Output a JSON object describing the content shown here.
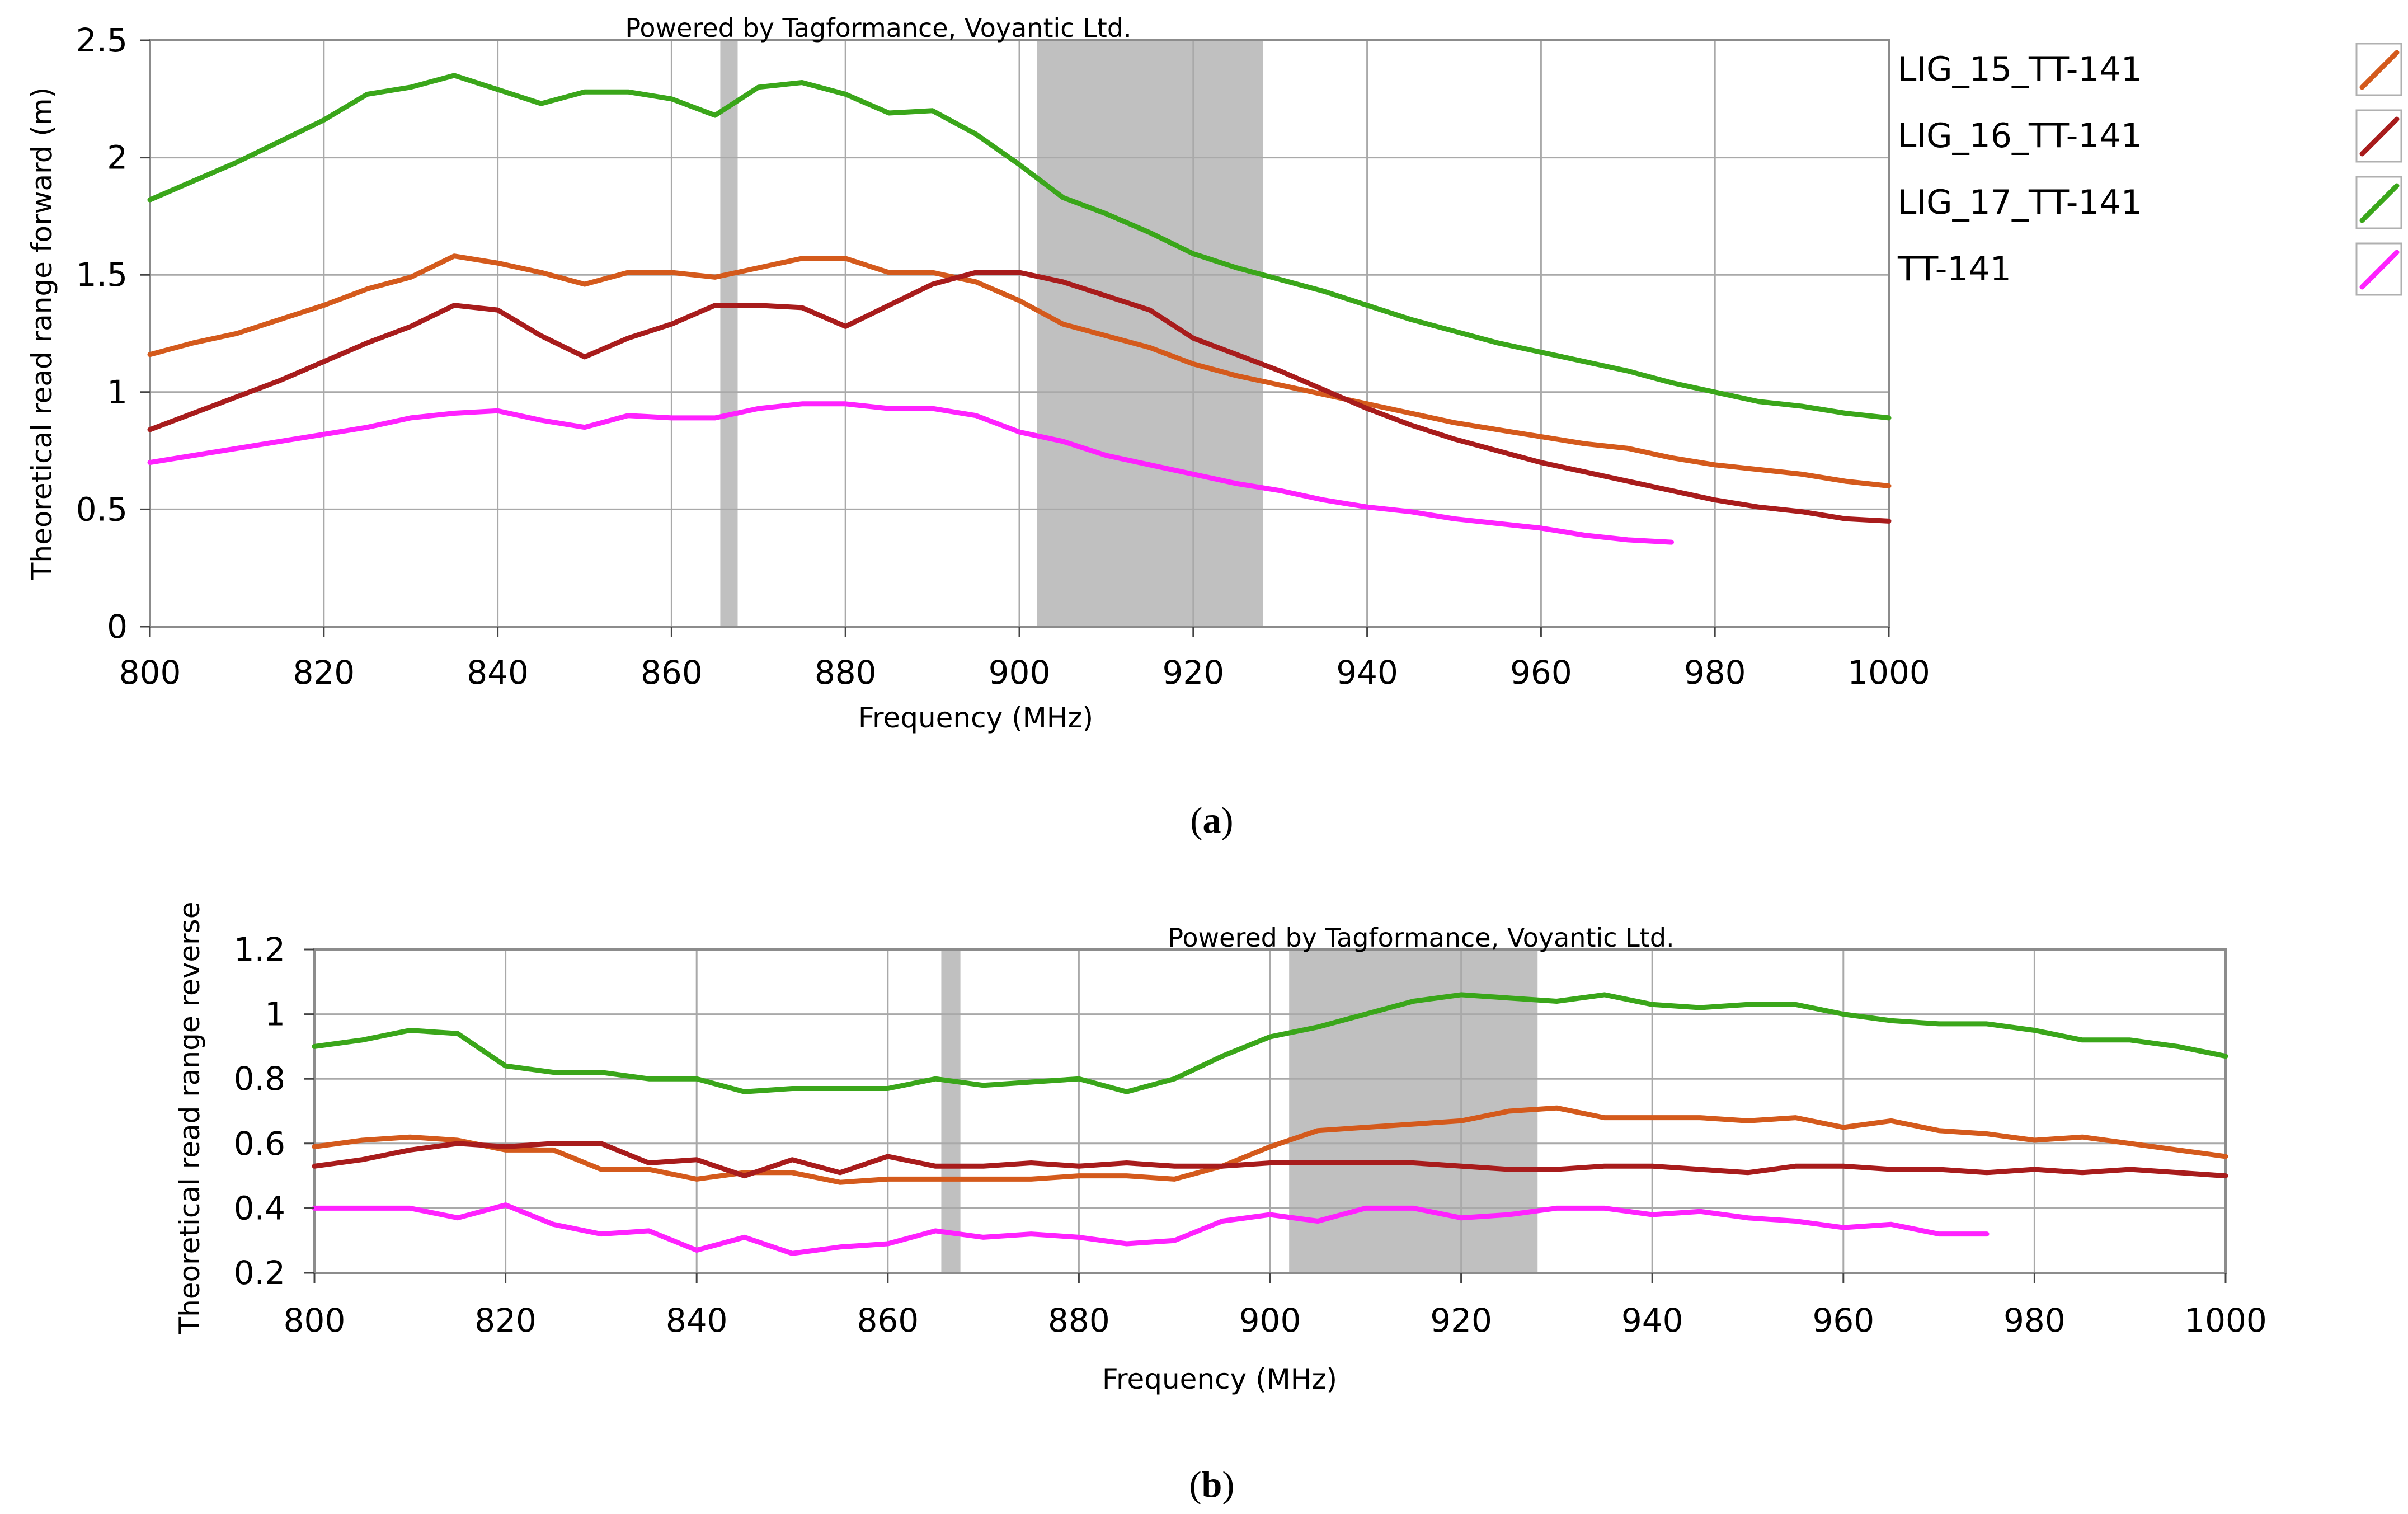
{
  "figure": {
    "caption_a_open": "(",
    "caption_a_letter": "a",
    "caption_a_close": ")",
    "caption_b_open": "(",
    "caption_b_letter": "b",
    "caption_b_close": ")"
  },
  "chart_data": [
    {
      "type": "line",
      "title": "",
      "watermark": "Powered by Tagformance, Voyantic Ltd.",
      "xlabel": "Frequency (MHz)",
      "ylabel": "Theoretical read range forward (m)",
      "xlim": [
        800,
        1000
      ],
      "ylim": [
        0,
        2.5
      ],
      "xticks": [
        800,
        820,
        840,
        860,
        880,
        900,
        920,
        940,
        960,
        980,
        1000
      ],
      "yticks": [
        0,
        0.5,
        1,
        1.5,
        2,
        2.5
      ],
      "ytick_labels": [
        "0",
        "0.5",
        "1",
        "1.5",
        "2",
        "2.5"
      ],
      "grid": true,
      "legend_position": "right",
      "shaded_bands": [
        [
          865.6,
          867.6
        ],
        [
          902,
          928
        ]
      ],
      "shade_color": "#c0c0c0",
      "series": [
        {
          "name": "LIG_15_TT-141",
          "color": "#d45a1c",
          "x": [
            800,
            805,
            810,
            815,
            820,
            825,
            830,
            835,
            840,
            845,
            850,
            855,
            860,
            865,
            870,
            875,
            880,
            885,
            890,
            895,
            900,
            905,
            910,
            915,
            920,
            925,
            930,
            935,
            940,
            945,
            950,
            955,
            960,
            965,
            970,
            975,
            980,
            985,
            990,
            995,
            1000
          ],
          "y": [
            1.16,
            1.21,
            1.25,
            1.31,
            1.37,
            1.44,
            1.49,
            1.58,
            1.55,
            1.51,
            1.46,
            1.51,
            1.51,
            1.49,
            1.53,
            1.57,
            1.57,
            1.51,
            1.51,
            1.47,
            1.39,
            1.29,
            1.24,
            1.19,
            1.12,
            1.07,
            1.03,
            0.99,
            0.95,
            0.91,
            0.87,
            0.84,
            0.81,
            0.78,
            0.76,
            0.72,
            0.69,
            0.67,
            0.65,
            0.62,
            0.6
          ]
        },
        {
          "name": "LIG_16_TT-141",
          "color": "#a81c1c",
          "x": [
            800,
            805,
            810,
            815,
            820,
            825,
            830,
            835,
            840,
            845,
            850,
            855,
            860,
            865,
            870,
            875,
            880,
            885,
            890,
            895,
            900,
            905,
            910,
            915,
            920,
            925,
            930,
            935,
            940,
            945,
            950,
            955,
            960,
            965,
            970,
            975,
            980,
            985,
            990,
            995,
            1000
          ],
          "y": [
            0.84,
            0.91,
            0.98,
            1.05,
            1.13,
            1.21,
            1.28,
            1.37,
            1.35,
            1.24,
            1.15,
            1.23,
            1.29,
            1.37,
            1.37,
            1.36,
            1.28,
            1.37,
            1.46,
            1.51,
            1.51,
            1.47,
            1.41,
            1.35,
            1.23,
            1.16,
            1.09,
            1.01,
            0.93,
            0.86,
            0.8,
            0.75,
            0.7,
            0.66,
            0.62,
            0.58,
            0.54,
            0.51,
            0.49,
            0.46,
            0.45
          ]
        },
        {
          "name": "LIG_17_TT-141",
          "color": "#3aa61a",
          "x": [
            800,
            805,
            810,
            815,
            820,
            825,
            830,
            835,
            840,
            845,
            850,
            855,
            860,
            865,
            870,
            875,
            880,
            885,
            890,
            895,
            900,
            905,
            910,
            915,
            920,
            925,
            930,
            935,
            940,
            945,
            950,
            955,
            960,
            965,
            970,
            975,
            980,
            985,
            990,
            995,
            1000
          ],
          "y": [
            1.82,
            1.9,
            1.98,
            2.07,
            2.16,
            2.27,
            2.3,
            2.35,
            2.29,
            2.23,
            2.28,
            2.28,
            2.25,
            2.18,
            2.3,
            2.32,
            2.27,
            2.19,
            2.2,
            2.1,
            1.97,
            1.83,
            1.76,
            1.68,
            1.59,
            1.53,
            1.48,
            1.43,
            1.37,
            1.31,
            1.26,
            1.21,
            1.17,
            1.13,
            1.09,
            1.04,
            1.0,
            0.96,
            0.94,
            0.91,
            0.89
          ]
        },
        {
          "name": "TT-141",
          "color": "#ff22ff",
          "x": [
            800,
            805,
            810,
            815,
            820,
            825,
            830,
            835,
            840,
            845,
            850,
            855,
            860,
            865,
            870,
            875,
            880,
            885,
            890,
            895,
            900,
            905,
            910,
            915,
            920,
            925,
            930,
            935,
            940,
            945,
            950,
            955,
            960,
            965,
            970,
            975
          ],
          "y": [
            0.7,
            0.73,
            0.76,
            0.79,
            0.82,
            0.85,
            0.89,
            0.91,
            0.92,
            0.88,
            0.85,
            0.9,
            0.89,
            0.89,
            0.93,
            0.95,
            0.95,
            0.93,
            0.93,
            0.9,
            0.83,
            0.79,
            0.73,
            0.69,
            0.65,
            0.61,
            0.58,
            0.54,
            0.51,
            0.49,
            0.46,
            0.44,
            0.42,
            0.39,
            0.37,
            0.36
          ]
        }
      ],
      "legend": [
        {
          "label": "LIG_15_TT-141",
          "color": "#d45a1c"
        },
        {
          "label": "LIG_16_TT-141",
          "color": "#a81c1c"
        },
        {
          "label": "LIG_17_TT-141",
          "color": "#3aa61a"
        },
        {
          "label": "TT-141",
          "color": "#ff22ff"
        }
      ]
    },
    {
      "type": "line",
      "title": "",
      "watermark": "Powered by Tagformance, Voyantic Ltd.",
      "xlabel": "Frequency (MHz)",
      "ylabel": "Theoretical read range reverse",
      "xlim": [
        800,
        1000
      ],
      "ylim": [
        0.2,
        1.2
      ],
      "xticks": [
        800,
        820,
        840,
        860,
        880,
        900,
        920,
        940,
        960,
        980,
        1000
      ],
      "yticks": [
        0.2,
        0.4,
        0.6,
        0.8,
        1,
        1.2
      ],
      "ytick_labels": [
        "0.2",
        "0.4",
        "0.6",
        "0.8",
        "1",
        "1.2"
      ],
      "grid": true,
      "shaded_bands": [
        [
          865.6,
          867.6
        ],
        [
          902,
          928
        ]
      ],
      "shade_color": "#c0c0c0",
      "series": [
        {
          "name": "LIG_15_TT-141",
          "color": "#d45a1c",
          "x": [
            800,
            805,
            810,
            815,
            820,
            825,
            830,
            835,
            840,
            845,
            850,
            855,
            860,
            865,
            870,
            875,
            880,
            885,
            890,
            895,
            900,
            905,
            910,
            915,
            920,
            925,
            930,
            935,
            940,
            945,
            950,
            955,
            960,
            965,
            970,
            975,
            980,
            985,
            990,
            995,
            1000
          ],
          "y": [
            0.59,
            0.61,
            0.62,
            0.61,
            0.58,
            0.58,
            0.52,
            0.52,
            0.49,
            0.51,
            0.51,
            0.48,
            0.49,
            0.49,
            0.49,
            0.49,
            0.5,
            0.5,
            0.49,
            0.53,
            0.59,
            0.64,
            0.65,
            0.66,
            0.67,
            0.7,
            0.71,
            0.68,
            0.68,
            0.68,
            0.67,
            0.68,
            0.65,
            0.67,
            0.64,
            0.63,
            0.61,
            0.62,
            0.6,
            0.58,
            0.56
          ]
        },
        {
          "name": "LIG_16_TT-141",
          "color": "#a81c1c",
          "x": [
            800,
            805,
            810,
            815,
            820,
            825,
            830,
            835,
            840,
            845,
            850,
            855,
            860,
            865,
            870,
            875,
            880,
            885,
            890,
            895,
            900,
            905,
            910,
            915,
            920,
            925,
            930,
            935,
            940,
            945,
            950,
            955,
            960,
            965,
            970,
            975,
            980,
            985,
            990,
            995,
            1000
          ],
          "y": [
            0.53,
            0.55,
            0.58,
            0.6,
            0.59,
            0.6,
            0.6,
            0.54,
            0.55,
            0.5,
            0.55,
            0.51,
            0.56,
            0.53,
            0.53,
            0.54,
            0.53,
            0.54,
            0.53,
            0.53,
            0.54,
            0.54,
            0.54,
            0.54,
            0.53,
            0.52,
            0.52,
            0.53,
            0.53,
            0.52,
            0.51,
            0.53,
            0.53,
            0.52,
            0.52,
            0.51,
            0.52,
            0.51,
            0.52,
            0.51,
            0.5
          ]
        },
        {
          "name": "LIG_17_TT-141",
          "color": "#3aa61a",
          "x": [
            800,
            805,
            810,
            815,
            820,
            825,
            830,
            835,
            840,
            845,
            850,
            855,
            860,
            865,
            870,
            875,
            880,
            885,
            890,
            895,
            900,
            905,
            910,
            915,
            920,
            925,
            930,
            935,
            940,
            945,
            950,
            955,
            960,
            965,
            970,
            975,
            980,
            985,
            990,
            995,
            1000
          ],
          "y": [
            0.9,
            0.92,
            0.95,
            0.94,
            0.84,
            0.82,
            0.82,
            0.8,
            0.8,
            0.76,
            0.77,
            0.77,
            0.77,
            0.8,
            0.78,
            0.79,
            0.8,
            0.76,
            0.8,
            0.87,
            0.93,
            0.96,
            1.0,
            1.04,
            1.06,
            1.05,
            1.04,
            1.06,
            1.03,
            1.02,
            1.03,
            1.03,
            1.0,
            0.98,
            0.97,
            0.97,
            0.95,
            0.92,
            0.92,
            0.9,
            0.87
          ]
        },
        {
          "name": "TT-141",
          "color": "#ff22ff",
          "x": [
            800,
            805,
            810,
            815,
            820,
            825,
            830,
            835,
            840,
            845,
            850,
            855,
            860,
            865,
            870,
            875,
            880,
            885,
            890,
            895,
            900,
            905,
            910,
            915,
            920,
            925,
            930,
            935,
            940,
            945,
            950,
            955,
            960,
            965,
            970,
            975
          ],
          "y": [
            0.4,
            0.4,
            0.4,
            0.37,
            0.41,
            0.35,
            0.32,
            0.33,
            0.27,
            0.31,
            0.26,
            0.28,
            0.29,
            0.33,
            0.31,
            0.32,
            0.31,
            0.29,
            0.3,
            0.36,
            0.38,
            0.36,
            0.4,
            0.4,
            0.37,
            0.38,
            0.4,
            0.4,
            0.38,
            0.39,
            0.37,
            0.36,
            0.34,
            0.35,
            0.32,
            0.32
          ]
        }
      ]
    }
  ]
}
